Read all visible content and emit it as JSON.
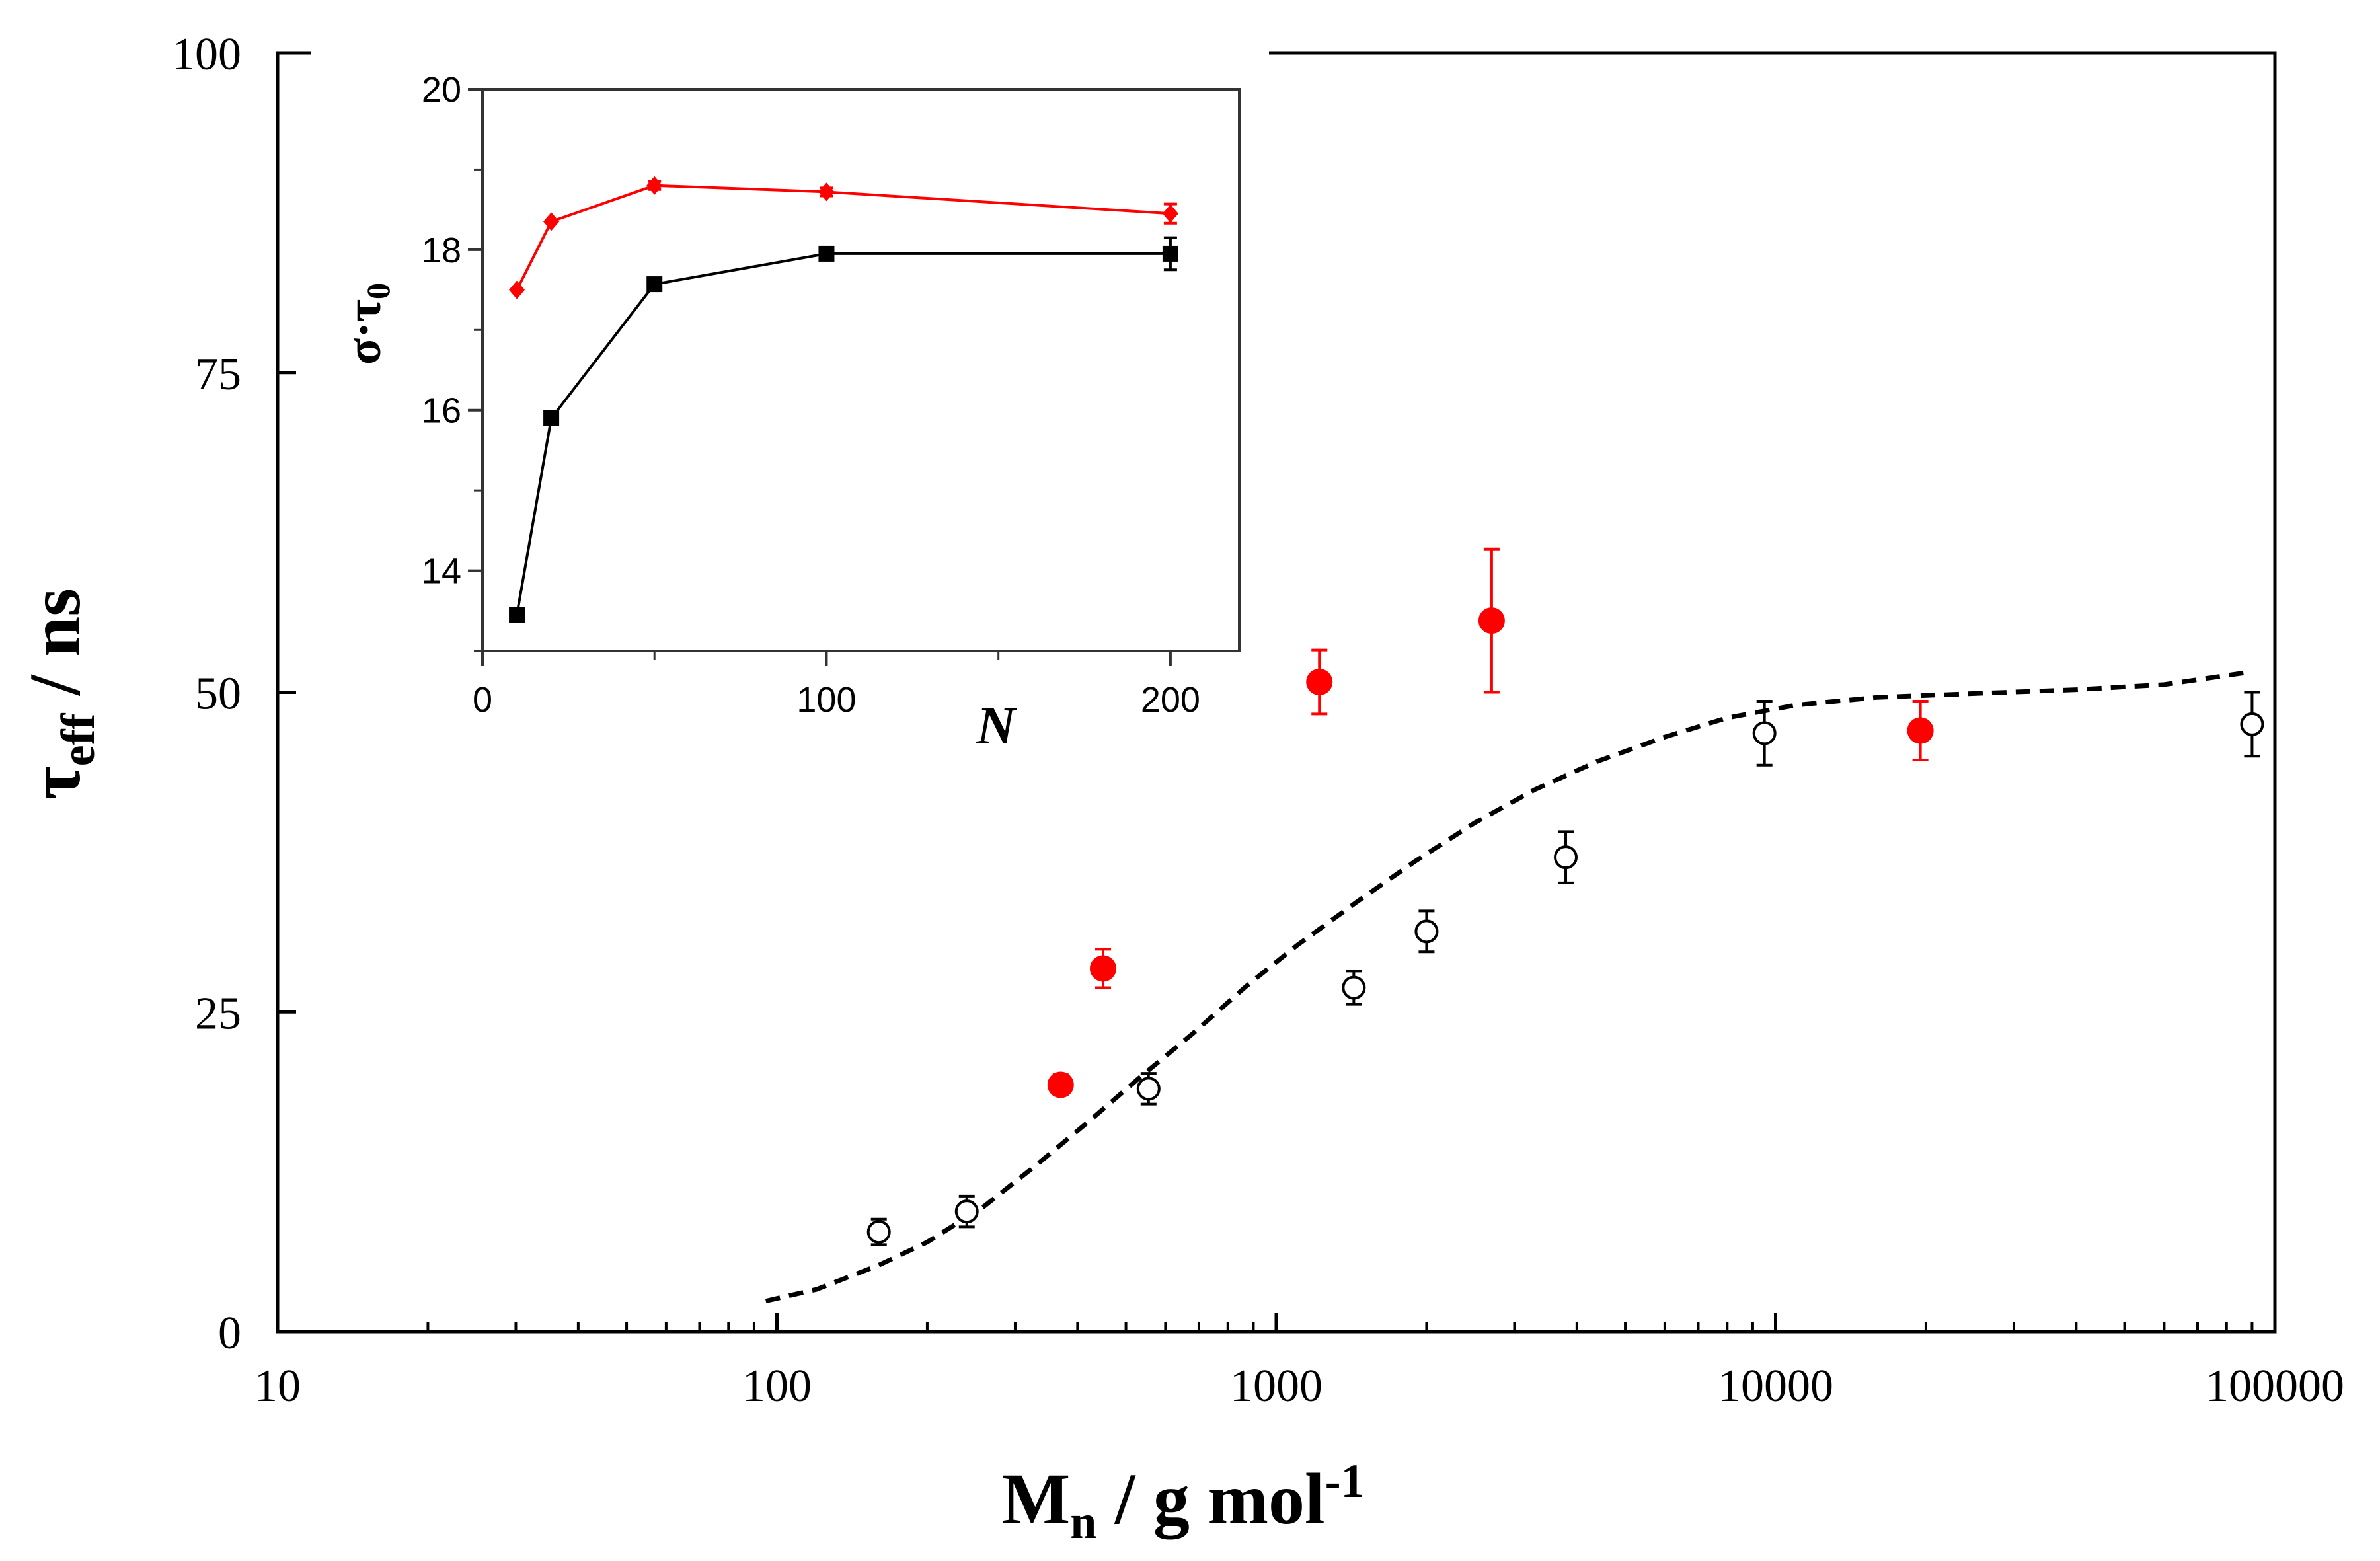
{
  "chart_data": [
    {
      "id": "main",
      "type": "scatter",
      "title": "",
      "xlabel": {
        "main": "M",
        "sub": "n",
        "rest": " / g mol",
        "sup": "-1"
      },
      "ylabel": {
        "main": "τ",
        "sub": "eff",
        "rest": " / ns"
      },
      "xscale": "log",
      "xlim": [
        10,
        100000
      ],
      "ylim": [
        0,
        100
      ],
      "xticks": [
        10,
        100,
        1000,
        10000,
        100000
      ],
      "xtick_labels": [
        "10",
        "100",
        "1000",
        "10000",
        "100000"
      ],
      "yticks": [
        0,
        25,
        50,
        75,
        100
      ],
      "ytick_labels": [
        "0",
        "25",
        "50",
        "75",
        "100"
      ],
      "series": [
        {
          "name": "open circles",
          "color": "#000000",
          "marker": "open-circle",
          "points": [
            {
              "x": 160,
              "y": 7.8,
              "err": 1.0
            },
            {
              "x": 240,
              "y": 9.4,
              "err": 1.2
            },
            {
              "x": 555,
              "y": 19.0,
              "err": 1.2
            },
            {
              "x": 1430,
              "y": 26.9,
              "err": 1.3
            },
            {
              "x": 2000,
              "y": 31.3,
              "err": 1.6
            },
            {
              "x": 3800,
              "y": 37.1,
              "err": 2.0
            },
            {
              "x": 9500,
              "y": 46.8,
              "err": 2.5
            },
            {
              "x": 90000,
              "y": 47.5,
              "err": 2.5
            }
          ]
        },
        {
          "name": "red filled circles",
          "color": "#ff0000",
          "marker": "filled-circle",
          "points": [
            {
              "x": 370,
              "y": 19.3,
              "err": 0.8
            },
            {
              "x": 450,
              "y": 28.4,
              "err": 1.5
            },
            {
              "x": 1220,
              "y": 50.8,
              "err": 2.5
            },
            {
              "x": 2700,
              "y": 55.6,
              "err": 5.6
            },
            {
              "x": 19500,
              "y": 47.0,
              "err": 2.3
            }
          ]
        },
        {
          "name": "fit",
          "color": "#000000",
          "style": "dashed",
          "points": [
            {
              "x": 95,
              "y": 2.4
            },
            {
              "x": 120,
              "y": 3.3
            },
            {
              "x": 160,
              "y": 5.2
            },
            {
              "x": 200,
              "y": 7.0
            },
            {
              "x": 260,
              "y": 9.8
            },
            {
              "x": 330,
              "y": 13.0
            },
            {
              "x": 420,
              "y": 16.4
            },
            {
              "x": 530,
              "y": 19.8
            },
            {
              "x": 680,
              "y": 23.3
            },
            {
              "x": 870,
              "y": 27.0
            },
            {
              "x": 1100,
              "y": 30.2
            },
            {
              "x": 1450,
              "y": 33.6
            },
            {
              "x": 1900,
              "y": 36.8
            },
            {
              "x": 2500,
              "y": 39.8
            },
            {
              "x": 3300,
              "y": 42.4
            },
            {
              "x": 4400,
              "y": 44.6
            },
            {
              "x": 6000,
              "y": 46.5
            },
            {
              "x": 8000,
              "y": 48.0
            },
            {
              "x": 11000,
              "y": 49.0
            },
            {
              "x": 16000,
              "y": 49.6
            },
            {
              "x": 25000,
              "y": 49.9
            },
            {
              "x": 40000,
              "y": 50.2
            },
            {
              "x": 60000,
              "y": 50.6
            },
            {
              "x": 90000,
              "y": 51.6
            }
          ]
        }
      ]
    },
    {
      "id": "inset",
      "type": "line",
      "title": "",
      "xlabel": "N",
      "ylabel": {
        "main": "σ",
        "dot": "·",
        "tau": "τ",
        "sub": "0"
      },
      "xlim": [
        0,
        220
      ],
      "ylim": [
        13,
        20
      ],
      "xticks": [
        0,
        100,
        200
      ],
      "xtick_labels": [
        "0",
        "100",
        "200"
      ],
      "yticks": [
        14,
        16,
        18,
        20
      ],
      "ytick_labels": [
        "14",
        "16",
        "18",
        "20"
      ],
      "series": [
        {
          "name": "red",
          "color": "#ff0000",
          "marker": "diamond",
          "points": [
            {
              "x": 10,
              "y": 17.5,
              "err": 0
            },
            {
              "x": 20,
              "y": 18.35,
              "err": 0
            },
            {
              "x": 50,
              "y": 18.8,
              "err": 0.05
            },
            {
              "x": 100,
              "y": 18.72,
              "err": 0.05
            },
            {
              "x": 200,
              "y": 18.45,
              "err": 0.12
            }
          ]
        },
        {
          "name": "black",
          "color": "#000000",
          "marker": "square",
          "points": [
            {
              "x": 10,
              "y": 13.45,
              "err": 0
            },
            {
              "x": 20,
              "y": 15.9,
              "err": 0
            },
            {
              "x": 50,
              "y": 17.57,
              "err": 0
            },
            {
              "x": 100,
              "y": 17.95,
              "err": 0.06
            },
            {
              "x": 200,
              "y": 17.95,
              "err": 0.2
            }
          ]
        }
      ]
    }
  ]
}
